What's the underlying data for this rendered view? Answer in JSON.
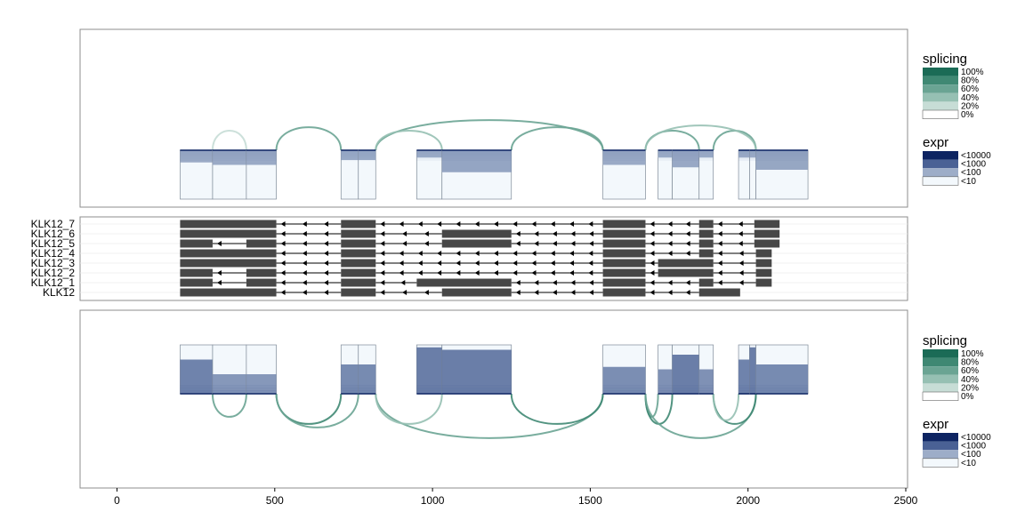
{
  "chart_data": {
    "type": "splicing-track",
    "xlim": [
      -120,
      2500
    ],
    "x_ticks": [
      0,
      500,
      1000,
      1500,
      2000,
      2500
    ],
    "x_tick_labels": [
      "0",
      "500",
      "1000",
      "1500",
      "2000",
      "2500"
    ],
    "grid": true,
    "legend_position": "right",
    "exons": [
      {
        "start": 200,
        "end": 303
      },
      {
        "start": 303,
        "end": 410
      },
      {
        "start": 410,
        "end": 505
      },
      {
        "start": 710,
        "end": 765
      },
      {
        "start": 765,
        "end": 820
      },
      {
        "start": 950,
        "end": 1030
      },
      {
        "start": 1030,
        "end": 1250
      },
      {
        "start": 1540,
        "end": 1675
      },
      {
        "start": 1715,
        "end": 1760
      },
      {
        "start": 1760,
        "end": 1845
      },
      {
        "start": 1845,
        "end": 1890
      },
      {
        "start": 1970,
        "end": 2005
      },
      {
        "start": 2005,
        "end": 2025
      },
      {
        "start": 2025,
        "end": 2190
      }
    ],
    "transcripts": [
      {
        "name": "KLK12_7",
        "exons": [
          [
            200,
            505
          ],
          [
            710,
            820
          ],
          [
            1540,
            1675
          ],
          [
            1845,
            1890
          ],
          [
            2020,
            2100
          ]
        ]
      },
      {
        "name": "KLK12_6",
        "exons": [
          [
            200,
            505
          ],
          [
            710,
            820
          ],
          [
            1030,
            1250
          ],
          [
            1540,
            1675
          ],
          [
            1845,
            1890
          ],
          [
            2020,
            2100
          ]
        ]
      },
      {
        "name": "KLK12_5",
        "exons": [
          [
            200,
            303
          ],
          [
            410,
            505
          ],
          [
            710,
            820
          ],
          [
            1030,
            1250
          ],
          [
            1540,
            1675
          ],
          [
            1845,
            1890
          ],
          [
            2020,
            2100
          ]
        ]
      },
      {
        "name": "KLK12_4",
        "exons": [
          [
            200,
            505
          ],
          [
            710,
            820
          ],
          [
            1540,
            1675
          ],
          [
            1845,
            1890
          ],
          [
            2025,
            2075
          ]
        ]
      },
      {
        "name": "KLK12_3",
        "exons": [
          [
            200,
            505
          ],
          [
            710,
            820
          ],
          [
            1540,
            1675
          ],
          [
            1715,
            1890
          ],
          [
            2025,
            2075
          ]
        ]
      },
      {
        "name": "KLK12_2",
        "exons": [
          [
            200,
            303
          ],
          [
            410,
            505
          ],
          [
            710,
            820
          ],
          [
            1540,
            1675
          ],
          [
            1715,
            1890
          ],
          [
            2025,
            2075
          ]
        ]
      },
      {
        "name": "KLK12_1",
        "exons": [
          [
            200,
            303
          ],
          [
            410,
            505
          ],
          [
            710,
            820
          ],
          [
            950,
            1250
          ],
          [
            1540,
            1675
          ],
          [
            1845,
            1890
          ],
          [
            2025,
            2075
          ]
        ]
      },
      {
        "name": "KLK12",
        "exons": [
          [
            200,
            505
          ],
          [
            710,
            820
          ],
          [
            1030,
            1250
          ],
          [
            1540,
            1675
          ],
          [
            1845,
            1975
          ]
        ]
      }
    ],
    "panels": [
      {
        "position": "top",
        "exon_expr_heights": [
          0.75,
          0.7,
          0.7,
          0.8,
          0.8,
          0.85,
          0.55,
          0.7,
          0.85,
          0.65,
          0.85,
          0.85,
          0.85,
          0.6
        ],
        "junctions": [
          {
            "from": 505,
            "to": 710,
            "height": 0.4,
            "splicing": 0.6
          },
          {
            "from": 820,
            "to": 1540,
            "height": 0.6,
            "splicing": 0.5
          },
          {
            "from": 1250,
            "to": 1540,
            "height": 0.4,
            "splicing": 0.55
          },
          {
            "from": 1675,
            "to": 1845,
            "height": 0.3,
            "splicing": 0.5
          },
          {
            "from": 1890,
            "to": 2025,
            "height": 0.3,
            "splicing": 0.5
          },
          {
            "from": 1675,
            "to": 2025,
            "height": 0.45,
            "splicing": 0.2
          },
          {
            "from": 303,
            "to": 410,
            "height": 0.3,
            "splicing": 0.05
          },
          {
            "from": 820,
            "to": 1030,
            "height": 0.3,
            "splicing": 0.3
          }
        ]
      },
      {
        "position": "bottom",
        "exon_expr_heights": [
          0.3,
          0.6,
          0.6,
          0.4,
          0.4,
          0.05,
          0.1,
          0.45,
          0.5,
          0.2,
          0.5,
          0.3,
          0.05,
          0.4
        ],
        "junctions": [
          {
            "from": 303,
            "to": 410,
            "height": 0.4,
            "splicing": 0.4
          },
          {
            "from": 505,
            "to": 710,
            "height": 0.6,
            "splicing": 0.7
          },
          {
            "from": 505,
            "to": 765,
            "height": 0.7,
            "splicing": 0.4
          },
          {
            "from": 820,
            "to": 1540,
            "height": 1.0,
            "splicing": 0.55
          },
          {
            "from": 820,
            "to": 1030,
            "height": 0.6,
            "splicing": 0.3
          },
          {
            "from": 1250,
            "to": 1540,
            "height": 0.6,
            "splicing": 0.75
          },
          {
            "from": 1675,
            "to": 1715,
            "height": 0.4,
            "splicing": 0.6
          },
          {
            "from": 1675,
            "to": 1760,
            "height": 0.6,
            "splicing": 0.7
          },
          {
            "from": 1675,
            "to": 2025,
            "height": 1.0,
            "splicing": 0.4
          },
          {
            "from": 1890,
            "to": 2025,
            "height": 0.6,
            "splicing": 0.7
          },
          {
            "from": 1890,
            "to": 1970,
            "height": 0.5,
            "splicing": 0.3
          }
        ]
      }
    ],
    "legends": {
      "splicing": {
        "title": "splicing",
        "labels": [
          "100%",
          "80%",
          "60%",
          "40%",
          "20%",
          "0%"
        ],
        "colors": [
          "#1b6b56",
          "#3f8873",
          "#6aa493",
          "#96c0b3",
          "#c7ddd6",
          "#ffffff"
        ]
      },
      "expr": {
        "title": "expr",
        "labels": [
          "<10000",
          "<1000",
          "<100",
          "<10"
        ],
        "colors": [
          "#0d2462",
          "#4a6195",
          "#9dadc8",
          "#f3f8fc"
        ]
      }
    }
  }
}
